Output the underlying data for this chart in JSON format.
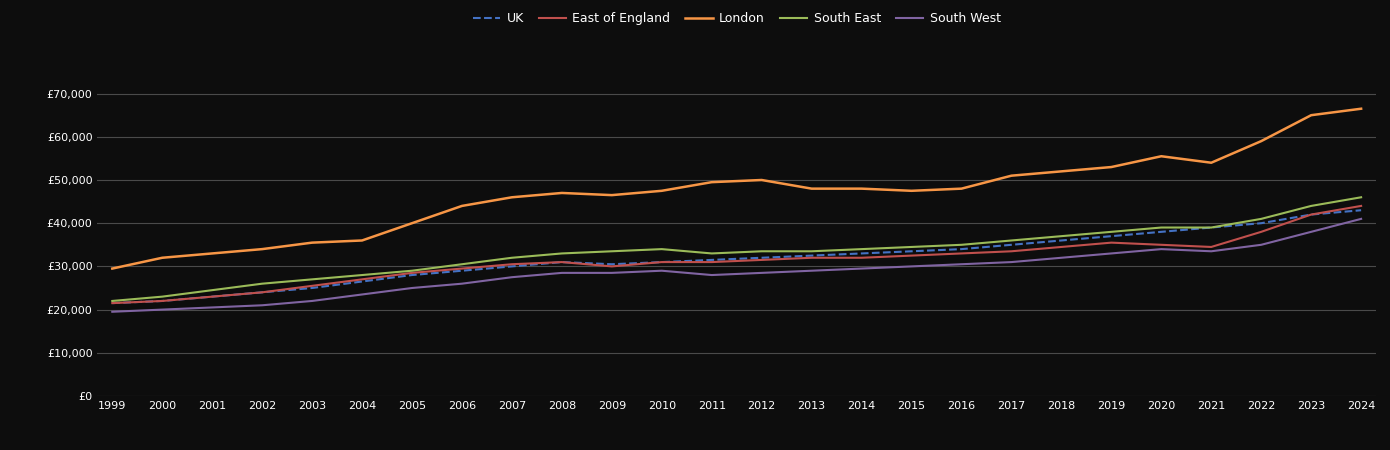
{
  "years": [
    1999,
    2000,
    2001,
    2002,
    2003,
    2004,
    2005,
    2006,
    2007,
    2008,
    2009,
    2010,
    2011,
    2012,
    2013,
    2014,
    2015,
    2016,
    2017,
    2018,
    2019,
    2020,
    2021,
    2022,
    2023,
    2024
  ],
  "UK": [
    21500,
    22000,
    23000,
    24000,
    25000,
    26500,
    28000,
    29000,
    30000,
    31000,
    30500,
    31000,
    31500,
    32000,
    32500,
    33000,
    33500,
    34000,
    35000,
    36000,
    37000,
    38000,
    39000,
    40000,
    42000,
    43000
  ],
  "East_of_England": [
    21500,
    22000,
    23000,
    24000,
    25500,
    27000,
    28500,
    29500,
    30500,
    31000,
    30000,
    31000,
    31000,
    31500,
    32000,
    32000,
    32500,
    33000,
    33500,
    34500,
    35500,
    35000,
    34500,
    38000,
    42000,
    44000
  ],
  "London": [
    29500,
    32000,
    33000,
    34000,
    35500,
    36000,
    40000,
    44000,
    46000,
    47000,
    46500,
    47500,
    49500,
    50000,
    48000,
    48000,
    47500,
    48000,
    51000,
    52000,
    53000,
    55500,
    54000,
    59000,
    65000,
    66500
  ],
  "South_East": [
    22000,
    23000,
    24500,
    26000,
    27000,
    28000,
    29000,
    30500,
    32000,
    33000,
    33500,
    34000,
    33000,
    33500,
    33500,
    34000,
    34500,
    35000,
    36000,
    37000,
    38000,
    39000,
    39000,
    41000,
    44000,
    46000
  ],
  "South_West": [
    19500,
    20000,
    20500,
    21000,
    22000,
    23500,
    25000,
    26000,
    27500,
    28500,
    28500,
    29000,
    28000,
    28500,
    29000,
    29500,
    30000,
    30500,
    31000,
    32000,
    33000,
    34000,
    33500,
    35000,
    38000,
    41000
  ],
  "colors": {
    "UK": "#4472c4",
    "East_of_England": "#c0504d",
    "London": "#f79646",
    "South_East": "#9bbb59",
    "South_West": "#8064a2"
  },
  "background_color": "#0d0d0d",
  "grid_color": "#4a4a4a",
  "text_color": "#ffffff",
  "ylim": [
    0,
    75000
  ],
  "yticks": [
    0,
    10000,
    20000,
    30000,
    40000,
    50000,
    60000,
    70000
  ]
}
